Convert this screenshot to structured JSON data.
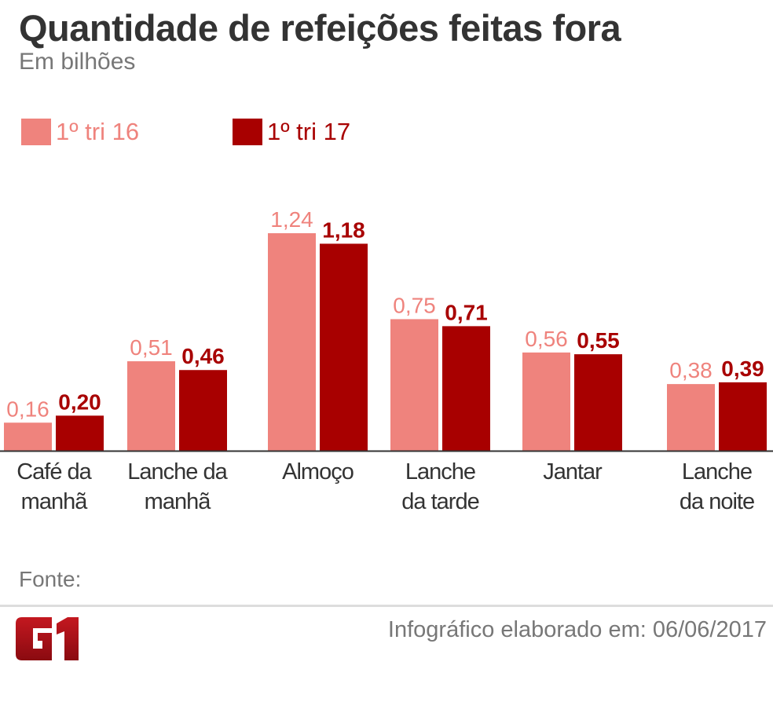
{
  "header": {
    "title": "Quantidade de refeições feitas fora",
    "subtitle": "Em bilhões"
  },
  "footer": {
    "source_label": "Fonte:",
    "credit": "Infográfico elaborado em: 06/06/2017",
    "logo_text": "G1"
  },
  "colors": {
    "series1": "#ef837d",
    "series2": "#a80000",
    "axis": "#333333"
  },
  "chart_data": {
    "type": "bar",
    "title": "Quantidade de refeições feitas fora",
    "subtitle": "Em bilhões",
    "categories": [
      [
        "Café da",
        "manhã"
      ],
      [
        "Lanche da",
        "manhã"
      ],
      [
        "Almoço",
        ""
      ],
      [
        "Lanche",
        "da tarde"
      ],
      [
        "Jantar",
        ""
      ],
      [
        "Lanche",
        "da noite"
      ]
    ],
    "series": [
      {
        "name": "1º tri 16",
        "values": [
          0.16,
          0.51,
          1.24,
          0.75,
          0.56,
          0.38
        ],
        "labels": [
          "0,16",
          "0,51",
          "1,24",
          "0,75",
          "0,56",
          "0,38"
        ]
      },
      {
        "name": "1º tri 17",
        "values": [
          0.2,
          0.46,
          1.18,
          0.71,
          0.55,
          0.39
        ],
        "labels": [
          "0,20",
          "0,46",
          "1,18",
          "0,71",
          "0,55",
          "0,39"
        ]
      }
    ],
    "ylim": [
      0,
      1.3
    ],
    "legend": "top-left",
    "grid": false
  }
}
